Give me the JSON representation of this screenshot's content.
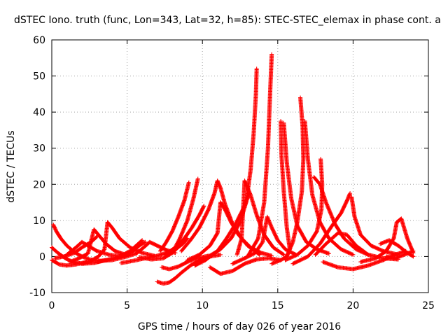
{
  "chart_data": {
    "type": "scatter",
    "title": "dSTEC Iono. truth (func, Lon=343, Lat=32, h=85): STEC-STEC_elemax in phase cont. a",
    "xlabel": "GPS time / hours of day 026 of year 2016",
    "ylabel": "dSTEC  / TECUs",
    "xlim": [
      0,
      25
    ],
    "ylim": [
      -10,
      60
    ],
    "xticks": [
      "0",
      "5",
      "10",
      "15",
      "20",
      "25"
    ],
    "yticks": [
      "-10",
      "0",
      "10",
      "20",
      "30",
      "40",
      "50",
      "60"
    ],
    "grid": true,
    "legend": "none",
    "marker": "+",
    "color": "#ff0000",
    "series": [
      {
        "points": [
          [
            0.1,
            8.8
          ],
          [
            0.3,
            7.0
          ],
          [
            0.6,
            5.0
          ],
          [
            1.0,
            3.0
          ],
          [
            1.5,
            1.2
          ],
          [
            2.0,
            0.0
          ],
          [
            2.5,
            -0.8
          ],
          [
            3.2,
            -1.2
          ],
          [
            4.0,
            -1.0
          ]
        ]
      },
      {
        "points": [
          [
            0.0,
            2.5
          ],
          [
            0.4,
            1.0
          ],
          [
            0.9,
            -0.5
          ],
          [
            1.4,
            -1.5
          ],
          [
            2.0,
            -2.0
          ],
          [
            2.8,
            -1.8
          ],
          [
            3.6,
            -1.0
          ]
        ]
      },
      {
        "points": [
          [
            0.0,
            -1.0
          ],
          [
            0.5,
            -2.2
          ],
          [
            1.0,
            -2.5
          ],
          [
            1.6,
            -2.2
          ],
          [
            2.3,
            -1.5
          ]
        ]
      },
      {
        "points": [
          [
            0.2,
            -0.5
          ],
          [
            0.8,
            0.0
          ],
          [
            1.5,
            1.0
          ],
          [
            2.0,
            2.5
          ],
          [
            2.6,
            4.0
          ],
          [
            3.0,
            5.5
          ]
        ]
      },
      {
        "points": [
          [
            1.0,
            0.5
          ],
          [
            1.6,
            2.5
          ],
          [
            2.0,
            4.0
          ],
          [
            2.4,
            3.0
          ],
          [
            3.0,
            1.5
          ],
          [
            3.8,
            0.5
          ],
          [
            4.6,
            0.0
          ]
        ]
      },
      {
        "points": [
          [
            1.2,
            -1.5
          ],
          [
            1.8,
            -0.5
          ],
          [
            2.4,
            0.8
          ],
          [
            2.8,
            7.5
          ],
          [
            3.1,
            6.0
          ],
          [
            3.6,
            3.5
          ],
          [
            4.2,
            1.5
          ],
          [
            4.9,
            0.5
          ]
        ]
      },
      {
        "points": [
          [
            2.0,
            -2.0
          ],
          [
            2.6,
            -1.2
          ],
          [
            3.1,
            0.0
          ],
          [
            3.5,
            2.0
          ],
          [
            3.7,
            9.5
          ],
          [
            4.0,
            8.0
          ],
          [
            4.5,
            5.0
          ],
          [
            5.2,
            2.5
          ],
          [
            6.0,
            1.0
          ],
          [
            6.8,
            0.2
          ]
        ]
      },
      {
        "points": [
          [
            3.0,
            -1.5
          ],
          [
            3.8,
            -0.8
          ],
          [
            4.6,
            0.2
          ],
          [
            5.2,
            1.5
          ],
          [
            5.6,
            3.0
          ],
          [
            6.0,
            4.5
          ]
        ]
      },
      {
        "points": [
          [
            4.0,
            -1.0
          ],
          [
            4.8,
            -0.2
          ],
          [
            5.6,
            0.8
          ],
          [
            6.1,
            2.5
          ],
          [
            6.5,
            4.0
          ],
          [
            7.0,
            3.0
          ],
          [
            7.6,
            1.8
          ],
          [
            8.2,
            1.0
          ]
        ]
      },
      {
        "points": [
          [
            4.8,
            0.0
          ],
          [
            5.4,
            1.5
          ],
          [
            5.8,
            3.0
          ],
          [
            6.2,
            4.0
          ]
        ]
      },
      {
        "points": [
          [
            4.6,
            -1.8
          ],
          [
            5.4,
            -1.2
          ],
          [
            6.2,
            -0.5
          ],
          [
            7.0,
            0.2
          ],
          [
            7.6,
            1.0
          ],
          [
            8.2,
            2.0
          ],
          [
            8.7,
            3.5
          ],
          [
            9.0,
            5.0
          ]
        ]
      },
      {
        "points": [
          [
            5.8,
            -0.2
          ],
          [
            6.6,
            -0.8
          ],
          [
            7.4,
            -0.5
          ],
          [
            8.0,
            1.0
          ],
          [
            8.5,
            3.0
          ]
        ]
      },
      {
        "points": [
          [
            7.0,
            -7.0
          ],
          [
            7.4,
            -7.5
          ],
          [
            7.8,
            -7.2
          ],
          [
            8.2,
            -6.0
          ],
          [
            8.6,
            -4.5
          ],
          [
            9.2,
            -2.5
          ],
          [
            9.8,
            -1.0
          ],
          [
            10.5,
            0.0
          ],
          [
            11.2,
            0.5
          ]
        ]
      },
      {
        "points": [
          [
            7.3,
            -3.0
          ],
          [
            7.8,
            -3.5
          ],
          [
            8.4,
            -2.8
          ],
          [
            9.0,
            -1.5
          ],
          [
            9.6,
            -0.5
          ],
          [
            10.4,
            0.2
          ]
        ]
      },
      {
        "points": [
          [
            7.2,
            1.5
          ],
          [
            7.6,
            4.0
          ],
          [
            8.0,
            7.0
          ],
          [
            8.4,
            11.0
          ],
          [
            8.8,
            15.5
          ],
          [
            9.1,
            20.5
          ]
        ]
      },
      {
        "points": [
          [
            8.0,
            1.0
          ],
          [
            8.5,
            5.0
          ],
          [
            9.0,
            10.0
          ],
          [
            9.4,
            16.0
          ],
          [
            9.7,
            21.5
          ]
        ]
      },
      {
        "points": [
          [
            7.5,
            0.5
          ],
          [
            8.2,
            2.5
          ],
          [
            8.8,
            5.0
          ],
          [
            9.3,
            8.0
          ],
          [
            9.8,
            11.5
          ],
          [
            10.1,
            14.0
          ]
        ]
      },
      {
        "points": [
          [
            8.6,
            1.5
          ],
          [
            9.2,
            4.5
          ],
          [
            9.8,
            8.0
          ],
          [
            10.4,
            13.0
          ],
          [
            10.8,
            17.5
          ],
          [
            11.0,
            21.0
          ],
          [
            11.2,
            19.0
          ],
          [
            11.5,
            14.5
          ],
          [
            12.0,
            9.0
          ],
          [
            12.6,
            5.0
          ],
          [
            13.2,
            2.5
          ],
          [
            13.9,
            1.0
          ],
          [
            14.6,
            0.2
          ]
        ]
      },
      {
        "points": [
          [
            9.0,
            -1.0
          ],
          [
            9.8,
            0.5
          ],
          [
            10.5,
            3.0
          ],
          [
            11.0,
            6.5
          ],
          [
            11.2,
            15.0
          ],
          [
            11.5,
            13.0
          ],
          [
            11.9,
            9.5
          ],
          [
            12.4,
            6.0
          ],
          [
            13.0,
            3.0
          ],
          [
            13.8,
            0.5
          ]
        ]
      },
      {
        "points": [
          [
            9.5,
            -2.5
          ],
          [
            10.2,
            -1.0
          ],
          [
            11.0,
            1.5
          ],
          [
            11.6,
            5.0
          ],
          [
            12.2,
            9.0
          ],
          [
            12.8,
            14.0
          ],
          [
            13.1,
            17.5
          ]
        ]
      },
      {
        "points": [
          [
            10.5,
            -3.0
          ],
          [
            11.2,
            -4.8
          ],
          [
            12.0,
            -4.0
          ],
          [
            12.8,
            -2.0
          ],
          [
            13.6,
            -0.8
          ],
          [
            14.4,
            -0.5
          ],
          [
            15.2,
            -1.0
          ]
        ]
      },
      {
        "points": [
          [
            10.4,
            0.0
          ],
          [
            11.2,
            2.0
          ],
          [
            11.9,
            5.0
          ],
          [
            12.5,
            9.5
          ],
          [
            12.9,
            15.0
          ],
          [
            13.2,
            24.0
          ],
          [
            13.4,
            34.0
          ],
          [
            13.55,
            45.0
          ],
          [
            13.6,
            52.0
          ]
        ]
      },
      {
        "points": [
          [
            12.3,
            0.5
          ],
          [
            12.6,
            5.0
          ],
          [
            12.8,
            21.0
          ],
          [
            13.2,
            17.0
          ],
          [
            13.6,
            11.5
          ],
          [
            14.1,
            6.0
          ],
          [
            14.7,
            2.5
          ],
          [
            15.4,
            0.5
          ]
        ]
      },
      {
        "points": [
          [
            12.0,
            -2.0
          ],
          [
            12.8,
            -0.5
          ],
          [
            13.5,
            1.0
          ],
          [
            14.0,
            4.0
          ],
          [
            14.3,
            11.0
          ],
          [
            14.6,
            8.0
          ],
          [
            15.0,
            4.5
          ],
          [
            15.5,
            2.0
          ],
          [
            16.2,
            0.5
          ]
        ]
      },
      {
        "points": [
          [
            13.0,
            0.0
          ],
          [
            13.7,
            5.0
          ],
          [
            14.1,
            15.0
          ],
          [
            14.35,
            30.0
          ],
          [
            14.5,
            46.0
          ],
          [
            14.6,
            56.0
          ]
        ]
      },
      {
        "points": [
          [
            14.6,
            -2.0
          ],
          [
            15.2,
            -1.0
          ],
          [
            15.6,
            0.0
          ],
          [
            15.8,
            2.0
          ],
          [
            15.6,
            8.0
          ],
          [
            15.4,
            18.0
          ],
          [
            15.25,
            28.0
          ],
          [
            15.2,
            37.5
          ]
        ]
      },
      {
        "points": [
          [
            15.4,
            37.0
          ],
          [
            15.6,
            26.0
          ],
          [
            15.9,
            16.0
          ],
          [
            16.3,
            8.5
          ],
          [
            16.9,
            4.0
          ],
          [
            17.6,
            2.0
          ],
          [
            18.4,
            0.8
          ]
        ]
      },
      {
        "points": [
          [
            15.6,
            0.0
          ],
          [
            16.0,
            4.0
          ],
          [
            16.3,
            9.5
          ],
          [
            16.6,
            18.0
          ],
          [
            16.7,
            27.0
          ],
          [
            16.65,
            36.0
          ],
          [
            16.5,
            44.0
          ]
        ]
      },
      {
        "points": [
          [
            16.8,
            37.5
          ],
          [
            17.0,
            27.0
          ],
          [
            17.3,
            17.0
          ],
          [
            17.8,
            9.5
          ],
          [
            18.4,
            5.0
          ],
          [
            19.2,
            2.0
          ],
          [
            20.0,
            0.5
          ]
        ]
      },
      {
        "points": [
          [
            15.5,
            -1.0
          ],
          [
            16.3,
            0.5
          ],
          [
            17.0,
            3.0
          ],
          [
            17.6,
            7.0
          ],
          [
            17.9,
            13.0
          ],
          [
            17.95,
            20.0
          ],
          [
            17.85,
            27.0
          ]
        ]
      },
      {
        "points": [
          [
            17.4,
            22.0
          ],
          [
            17.8,
            20.0
          ],
          [
            18.2,
            15.0
          ],
          [
            18.8,
            9.0
          ],
          [
            19.4,
            5.0
          ],
          [
            20.2,
            2.0
          ],
          [
            21.0,
            0.5
          ]
        ]
      },
      {
        "points": [
          [
            16.0,
            -2.0
          ],
          [
            17.0,
            0.0
          ],
          [
            17.8,
            3.5
          ],
          [
            18.6,
            8.5
          ],
          [
            19.2,
            12.0
          ],
          [
            19.6,
            15.5
          ],
          [
            19.8,
            17.5
          ]
        ]
      },
      {
        "points": [
          [
            18.0,
            -1.5
          ],
          [
            19.0,
            -3.0
          ],
          [
            20.0,
            -3.5
          ],
          [
            21.0,
            -2.5
          ],
          [
            22.0,
            -1.0
          ],
          [
            22.8,
            0.5
          ],
          [
            23.5,
            1.5
          ]
        ]
      },
      {
        "points": [
          [
            19.9,
            16.5
          ],
          [
            20.1,
            11.0
          ],
          [
            20.5,
            6.0
          ],
          [
            21.2,
            3.0
          ],
          [
            22.0,
            1.5
          ],
          [
            23.0,
            0.5
          ]
        ]
      },
      {
        "points": [
          [
            17.5,
            0.5
          ],
          [
            18.2,
            3.5
          ],
          [
            19.0,
            6.5
          ],
          [
            19.6,
            6.0
          ],
          [
            20.2,
            3.0
          ],
          [
            21.0,
            0.5
          ],
          [
            22.0,
            -0.5
          ],
          [
            23.0,
            -0.8
          ]
        ]
      },
      {
        "points": [
          [
            20.5,
            -1.5
          ],
          [
            21.5,
            -0.5
          ],
          [
            22.2,
            1.5
          ],
          [
            22.7,
            5.0
          ],
          [
            22.9,
            9.5
          ],
          [
            23.2,
            10.5
          ],
          [
            23.6,
            5.0
          ],
          [
            24.0,
            1.0
          ]
        ]
      },
      {
        "points": [
          [
            21.8,
            3.5
          ],
          [
            22.4,
            4.5
          ],
          [
            23.0,
            3.0
          ],
          [
            23.6,
            1.0
          ],
          [
            24.0,
            0.0
          ]
        ]
      },
      {
        "points": [
          [
            22.2,
            0.0
          ],
          [
            22.8,
            -0.5
          ],
          [
            23.4,
            0.5
          ],
          [
            24.0,
            1.5
          ]
        ]
      }
    ]
  }
}
